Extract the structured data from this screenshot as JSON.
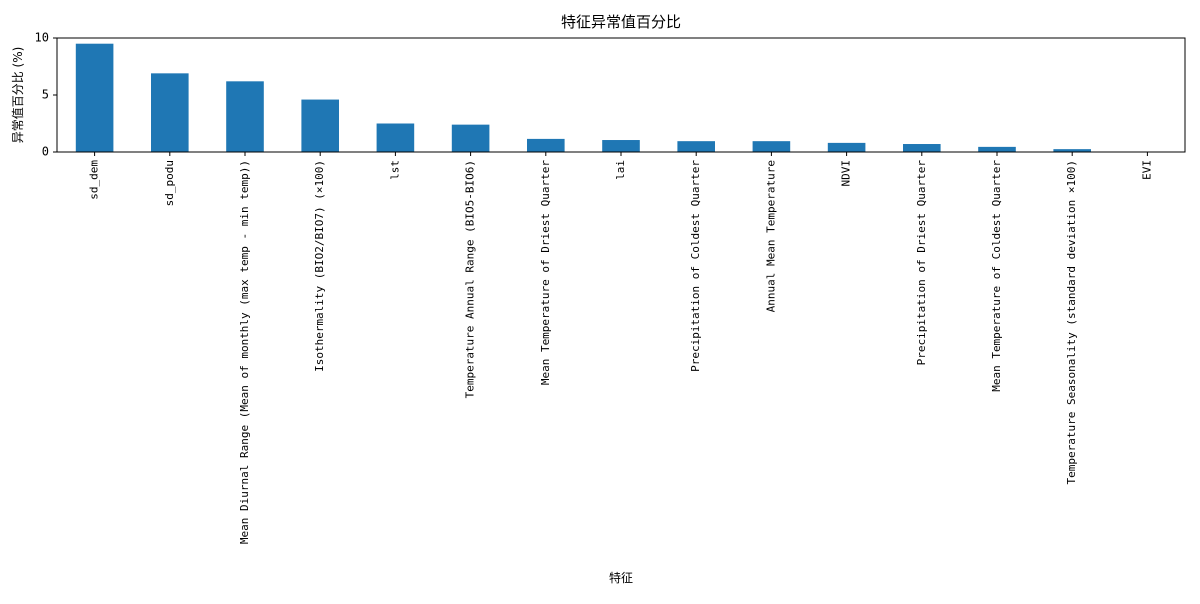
{
  "chart_data": {
    "type": "bar",
    "title": "特征异常值百分比",
    "xlabel": "特征",
    "ylabel": "异常值百分比 (%)",
    "ylim": [
      0,
      10
    ],
    "yticks": [
      0,
      5,
      10
    ],
    "grid": false,
    "bar_color": "#1f77b4",
    "categories": [
      "sd_dem",
      "sd_podu",
      "Mean Diurnal Range (Mean of monthly (max temp - min temp))",
      "Isothermality (BIO2/BIO7) (×100)",
      "lst",
      "Temperature Annual Range (BIO5-BIO6)",
      "Mean Temperature of Driest Quarter",
      "lai",
      "Precipitation of Coldest Quarter",
      "Annual Mean Temperature",
      "NDVI",
      "Precipitation of Driest Quarter",
      "Mean Temperature of Coldest Quarter",
      "Temperature Seasonality (standard deviation ×100)",
      "EVI"
    ],
    "values": [
      9.5,
      6.9,
      6.2,
      4.6,
      2.5,
      2.4,
      1.15,
      1.05,
      0.95,
      0.95,
      0.8,
      0.7,
      0.45,
      0.25,
      0
    ]
  }
}
